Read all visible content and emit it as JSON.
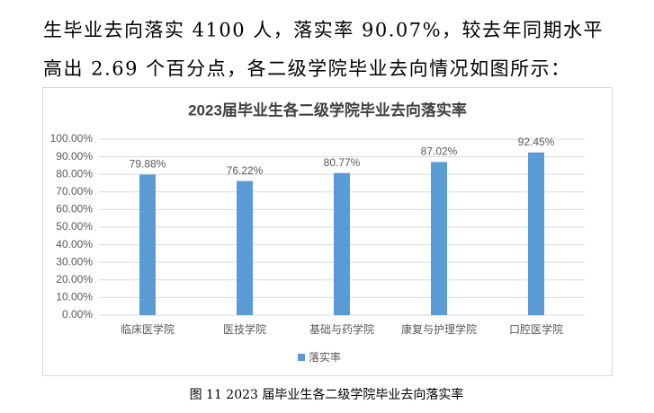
{
  "paragraph": [
    "生毕业去向落实 4100 人，落实率 90.07%，较去年同期水平",
    "高出 2.69 个百分点，各二级学院毕业去向情况如图所示："
  ],
  "chart_data": {
    "type": "bar",
    "title": "2023届毕业生各二级学院毕业去向落实率",
    "categories": [
      "临床医学院",
      "医技学院",
      "基础与药学院",
      "康复与护理学院",
      "口腔医学院"
    ],
    "series": [
      {
        "name": "落实率",
        "color": "#5b9bd5",
        "values": [
          79.88,
          76.22,
          80.77,
          87.02,
          92.45
        ],
        "value_labels": [
          "79.88%",
          "76.22%",
          "80.77%",
          "87.02%",
          "92.45%"
        ]
      }
    ],
    "ylim": [
      0,
      100
    ],
    "yticks": [
      {
        "value": 0,
        "label": "0.00%"
      },
      {
        "value": 10,
        "label": "10.00%"
      },
      {
        "value": 20,
        "label": "20.00%"
      },
      {
        "value": 30,
        "label": "30.00%"
      },
      {
        "value": 40,
        "label": "40.00%"
      },
      {
        "value": 50,
        "label": "50.00%"
      },
      {
        "value": 60,
        "label": "60.00%"
      },
      {
        "value": 70,
        "label": "70.00%"
      },
      {
        "value": 80,
        "label": "80.00%"
      },
      {
        "value": 90,
        "label": "90.00%"
      },
      {
        "value": 100,
        "label": "100.00%"
      }
    ],
    "grid": true,
    "legend": "bottom"
  },
  "caption": "图 11 2023 届毕业生各二级学院毕业去向落实率"
}
